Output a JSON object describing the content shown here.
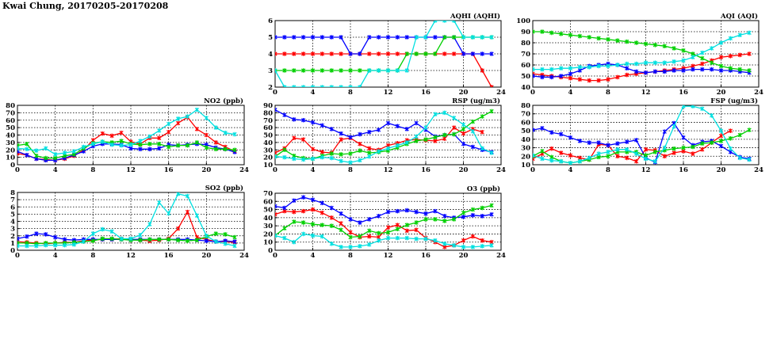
{
  "page": {
    "title": "Kwai Chung, 20170205-20170208"
  },
  "chart_data": [
    {
      "id": "no2",
      "type": "line",
      "title": "NO2 (ppb)",
      "xlim": [
        0,
        24
      ],
      "ylim": [
        0,
        80
      ],
      "xticks": [
        "0",
        "4",
        "8",
        "12",
        "16",
        "20",
        "24"
      ],
      "yticks": [
        "0",
        "10",
        "20",
        "30",
        "40",
        "50",
        "60",
        "70",
        "80"
      ],
      "grid": true,
      "series": [
        {
          "color": "#ff0000",
          "values": [
            15,
            13,
            8,
            7,
            6,
            8,
            12,
            20,
            33,
            42,
            39,
            43,
            31,
            28,
            36,
            36,
            44,
            56,
            64,
            48,
            40,
            30,
            24,
            18
          ]
        },
        {
          "color": "#0000ff",
          "values": [
            18,
            13,
            8,
            6,
            6,
            9,
            13,
            18,
            25,
            28,
            28,
            27,
            22,
            21,
            21,
            22,
            27,
            26,
            27,
            28,
            27,
            23,
            21,
            17
          ]
        },
        {
          "color": "#00d000",
          "values": [
            26,
            28,
            12,
            9,
            9,
            12,
            14,
            22,
            29,
            31,
            30,
            32,
            28,
            27,
            28,
            28,
            24,
            26,
            26,
            30,
            23,
            21,
            21,
            20
          ]
        },
        {
          "color": "#00e0e0",
          "values": [
            22,
            21,
            19,
            22,
            14,
            16,
            18,
            24,
            28,
            31,
            27,
            26,
            27,
            32,
            38,
            46,
            55,
            62,
            65,
            74,
            63,
            50,
            43,
            41
          ]
        }
      ]
    },
    {
      "id": "so2",
      "type": "line",
      "title": "SO2 (ppb)",
      "xlim": [
        0,
        24
      ],
      "ylim": [
        0,
        8
      ],
      "xticks": [
        "0",
        "4",
        "8",
        "12",
        "16",
        "20",
        "24"
      ],
      "yticks": [
        "0",
        "1",
        "2",
        "3",
        "4",
        "5",
        "6",
        "7",
        "8"
      ],
      "grid": true,
      "series": [
        {
          "color": "#ff0000",
          "values": [
            1.2,
            1.1,
            1.0,
            0.9,
            1.0,
            1.1,
            1.1,
            1.3,
            1.4,
            1.5,
            1.5,
            1.6,
            1.5,
            1.4,
            1.3,
            1.4,
            1.6,
            3.0,
            5.3,
            1.8,
            1.5,
            1.2,
            1.2,
            1.1
          ]
        },
        {
          "color": "#0000ff",
          "values": [
            1.6,
            1.9,
            2.3,
            2.2,
            1.8,
            1.5,
            1.4,
            1.5,
            1.5,
            1.5,
            1.5,
            1.5,
            1.5,
            1.5,
            1.5,
            1.5,
            1.5,
            1.5,
            1.5,
            1.4,
            1.3,
            1.2,
            1.3,
            1.2
          ]
        },
        {
          "color": "#00d000",
          "values": [
            1.0,
            1.0,
            0.9,
            1.0,
            1.0,
            1.0,
            1.1,
            1.2,
            1.3,
            1.6,
            1.6,
            1.5,
            1.4,
            1.4,
            1.5,
            1.5,
            1.5,
            1.4,
            1.3,
            1.4,
            1.9,
            2.3,
            2.2,
            1.8
          ]
        },
        {
          "color": "#00e0e0",
          "values": [
            0.6,
            0.6,
            0.6,
            0.7,
            0.7,
            0.7,
            0.8,
            1.2,
            2.3,
            2.9,
            2.6,
            1.6,
            1.6,
            2.1,
            3.6,
            6.6,
            5.1,
            7.8,
            7.5,
            4.8,
            2.0,
            1.2,
            0.9,
            0.6
          ]
        }
      ]
    },
    {
      "id": "aqhi",
      "type": "line",
      "title": "AQHI (AQHI)",
      "xlim": [
        0,
        24
      ],
      "ylim": [
        2,
        6
      ],
      "xticks": [
        "0",
        "4",
        "8",
        "12",
        "16",
        "20",
        "24"
      ],
      "yticks": [
        "2",
        "3",
        "4",
        "5",
        "6"
      ],
      "grid": true,
      "series": [
        {
          "color": "#ff0000",
          "values": [
            4,
            4,
            4,
            4,
            4,
            4,
            4,
            4,
            4,
            4,
            4,
            4,
            4,
            4,
            4,
            4,
            4,
            4,
            4,
            4,
            4,
            4,
            3,
            2
          ]
        },
        {
          "color": "#0000ff",
          "values": [
            5,
            5,
            5,
            5,
            5,
            5,
            5,
            5,
            4,
            4,
            5,
            5,
            5,
            5,
            5,
            5,
            5,
            5,
            5,
            5,
            4,
            4,
            4,
            4
          ]
        },
        {
          "color": "#00d000",
          "values": [
            3,
            3,
            3,
            3,
            3,
            3,
            3,
            3,
            3,
            3,
            3,
            3,
            3,
            3,
            4,
            4,
            4,
            4,
            5,
            5,
            5,
            5,
            5,
            5
          ]
        },
        {
          "color": "#00e0e0",
          "values": [
            3,
            2,
            2,
            2,
            2,
            2,
            2,
            2,
            2,
            2,
            3,
            3,
            3,
            3,
            3,
            5,
            5,
            6,
            6,
            6,
            5,
            5,
            5,
            5
          ]
        }
      ]
    },
    {
      "id": "rsp",
      "type": "line",
      "title": "RSP (ug/m3)",
      "xlim": [
        0,
        24
      ],
      "ylim": [
        10,
        90
      ],
      "xticks": [
        "0",
        "4",
        "8",
        "12",
        "16",
        "20",
        "24"
      ],
      "yticks": [
        "10",
        "20",
        "30",
        "40",
        "50",
        "60",
        "70",
        "80",
        "90"
      ],
      "grid": true,
      "series": [
        {
          "color": "#ff0000",
          "values": [
            26,
            32,
            46,
            44,
            31,
            27,
            26,
            44,
            46,
            38,
            32,
            30,
            36,
            39,
            43,
            44,
            43,
            42,
            45,
            60,
            52,
            58,
            54,
            null
          ]
        },
        {
          "color": "#0000ff",
          "values": [
            84,
            77,
            71,
            70,
            67,
            63,
            58,
            52,
            47,
            51,
            54,
            57,
            66,
            62,
            58,
            66,
            57,
            48,
            50,
            51,
            38,
            34,
            30,
            27
          ]
        },
        {
          "color": "#00d000",
          "values": [
            21,
            30,
            22,
            19,
            18,
            22,
            25,
            24,
            25,
            29,
            26,
            27,
            29,
            33,
            38,
            42,
            44,
            47,
            50,
            51,
            58,
            68,
            75,
            82
          ]
        },
        {
          "color": "#00e0e0",
          "values": [
            21,
            20,
            18,
            17,
            18,
            20,
            19,
            15,
            13,
            16,
            21,
            28,
            32,
            36,
            40,
            48,
            60,
            78,
            80,
            73,
            64,
            55,
            32,
            26
          ]
        }
      ]
    },
    {
      "id": "o3",
      "type": "line",
      "title": "O3 (ppb)",
      "xlim": [
        0,
        24
      ],
      "ylim": [
        0,
        70
      ],
      "xticks": [
        "0",
        "4",
        "8",
        "12",
        "16",
        "20",
        "24"
      ],
      "yticks": [
        "0",
        "10",
        "20",
        "30",
        "40",
        "50",
        "60",
        "70"
      ],
      "grid": true,
      "series": [
        {
          "color": "#ff0000",
          "values": [
            44,
            48,
            47,
            48,
            50,
            46,
            40,
            33,
            22,
            16,
            17,
            16,
            28,
            31,
            24,
            25,
            15,
            10,
            4,
            6,
            12,
            17,
            12,
            10
          ]
        },
        {
          "color": "#0000ff",
          "values": [
            54,
            52,
            61,
            65,
            62,
            58,
            52,
            45,
            38,
            34,
            38,
            42,
            47,
            48,
            49,
            47,
            45,
            48,
            42,
            40,
            41,
            43,
            42,
            44
          ]
        },
        {
          "color": "#00d000",
          "values": [
            18,
            27,
            35,
            34,
            32,
            31,
            30,
            25,
            16,
            17,
            24,
            21,
            22,
            26,
            31,
            34,
            38,
            38,
            36,
            38,
            46,
            50,
            52,
            55
          ]
        },
        {
          "color": "#00e0e0",
          "values": [
            18,
            15,
            10,
            20,
            18,
            17,
            8,
            4,
            4,
            5,
            7,
            12,
            15,
            15,
            15,
            14,
            14,
            12,
            8,
            6,
            4,
            4,
            5,
            6
          ]
        }
      ]
    },
    {
      "id": "aqi",
      "type": "line",
      "title": "AQI (AQI)",
      "xlim": [
        0,
        24
      ],
      "ylim": [
        40,
        100
      ],
      "xticks": [
        "0",
        "4",
        "8",
        "12",
        "16",
        "20",
        "24"
      ],
      "yticks": [
        "40",
        "50",
        "60",
        "70",
        "80",
        "90",
        "100"
      ],
      "grid": true,
      "series": [
        {
          "color": "#ff0000",
          "values": [
            52,
            51,
            50,
            49,
            48,
            47,
            46,
            46,
            47,
            49,
            51,
            52,
            53,
            54,
            55,
            56,
            57,
            59,
            61,
            64,
            67,
            68,
            69,
            70
          ]
        },
        {
          "color": "#0000ff",
          "values": [
            50,
            49,
            49,
            50,
            52,
            55,
            59,
            60,
            61,
            60,
            57,
            54,
            53,
            54,
            54,
            55,
            55,
            56,
            56,
            56,
            55,
            55,
            54,
            53
          ]
        },
        {
          "color": "#00d000",
          "values": [
            90,
            90,
            89,
            88,
            87,
            86,
            85,
            84,
            83,
            82,
            81,
            80,
            79,
            78,
            77,
            75,
            73,
            70,
            66,
            62,
            59,
            57,
            56,
            55
          ]
        },
        {
          "color": "#00e0e0",
          "values": [
            56,
            56,
            56,
            57,
            57,
            58,
            58,
            59,
            59,
            60,
            61,
            61,
            62,
            62,
            62,
            63,
            64,
            67,
            71,
            75,
            80,
            84,
            87,
            89
          ]
        }
      ]
    },
    {
      "id": "fsp",
      "type": "line",
      "title": "FSP (ug/m3)",
      "xlim": [
        0,
        24
      ],
      "ylim": [
        10,
        80
      ],
      "xticks": [
        "0",
        "4",
        "8",
        "12",
        "16",
        "20",
        "24"
      ],
      "yticks": [
        "10",
        "20",
        "30",
        "40",
        "50",
        "60",
        "70",
        "80"
      ],
      "grid": true,
      "series": [
        {
          "color": "#ff0000",
          "values": [
            17,
            23,
            29,
            24,
            21,
            18,
            16,
            34,
            33,
            20,
            18,
            14,
            28,
            27,
            20,
            24,
            26,
            23,
            28,
            36,
            44,
            50,
            null,
            null
          ]
        },
        {
          "color": "#0000ff",
          "values": [
            51,
            53,
            48,
            46,
            42,
            38,
            36,
            36,
            33,
            35,
            37,
            39,
            18,
            13,
            49,
            59,
            42,
            33,
            37,
            38,
            32,
            25,
            19,
            17
          ]
        },
        {
          "color": "#00d000",
          "values": [
            20,
            26,
            19,
            14,
            12,
            14,
            16,
            19,
            20,
            25,
            25,
            25,
            21,
            25,
            27,
            29,
            30,
            31,
            35,
            36,
            38,
            41,
            45,
            51
          ]
        },
        {
          "color": "#00e0e0",
          "values": [
            21,
            17,
            15,
            14,
            12,
            14,
            18,
            23,
            25,
            28,
            28,
            23,
            17,
            14,
            30,
            55,
            79,
            79,
            76,
            68,
            50,
            29,
            18,
            16
          ]
        }
      ]
    }
  ]
}
